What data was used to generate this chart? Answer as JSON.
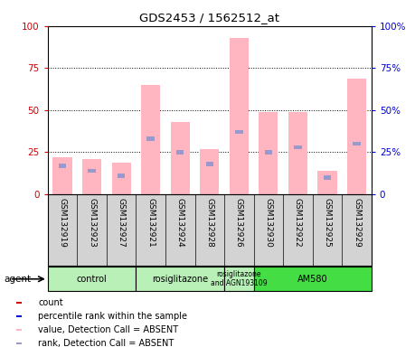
{
  "title": "GDS2453 / 1562512_at",
  "samples": [
    "GSM132919",
    "GSM132923",
    "GSM132927",
    "GSM132921",
    "GSM132924",
    "GSM132928",
    "GSM132926",
    "GSM132930",
    "GSM132922",
    "GSM132925",
    "GSM132929"
  ],
  "pink_bar_heights": [
    22,
    21,
    19,
    65,
    43,
    27,
    93,
    49,
    49,
    14,
    69
  ],
  "blue_marker_pos": [
    17,
    14,
    11,
    33,
    25,
    18,
    37,
    25,
    28,
    10,
    30
  ],
  "groups": [
    {
      "label": "control",
      "start": 0,
      "end": 3,
      "color": "#b8f0b8"
    },
    {
      "label": "rosiglitazone",
      "start": 3,
      "end": 6,
      "color": "#b8f0b8"
    },
    {
      "label": "rosiglitazone\nand AGN193109",
      "start": 6,
      "end": 7,
      "color": "#b8f0b8"
    },
    {
      "label": "AM580",
      "start": 7,
      "end": 11,
      "color": "#44dd44"
    }
  ],
  "agent_label": "agent",
  "ylim_left": [
    0,
    100
  ],
  "ylim_right": [
    0,
    100
  ],
  "yticks": [
    0,
    25,
    50,
    75,
    100
  ],
  "left_color": "#cc0000",
  "right_color": "#0000cc",
  "bar_color": "#ffb6c1",
  "blue_dot_color": "#9999cc",
  "bg_color": "#d3d3d3",
  "plot_bg": "#ffffff",
  "legend_items": [
    {
      "color": "#cc0000",
      "label": "count"
    },
    {
      "color": "#0000cc",
      "label": "percentile rank within the sample"
    },
    {
      "color": "#ffb6c1",
      "label": "value, Detection Call = ABSENT"
    },
    {
      "color": "#9999cc",
      "label": "rank, Detection Call = ABSENT"
    }
  ]
}
